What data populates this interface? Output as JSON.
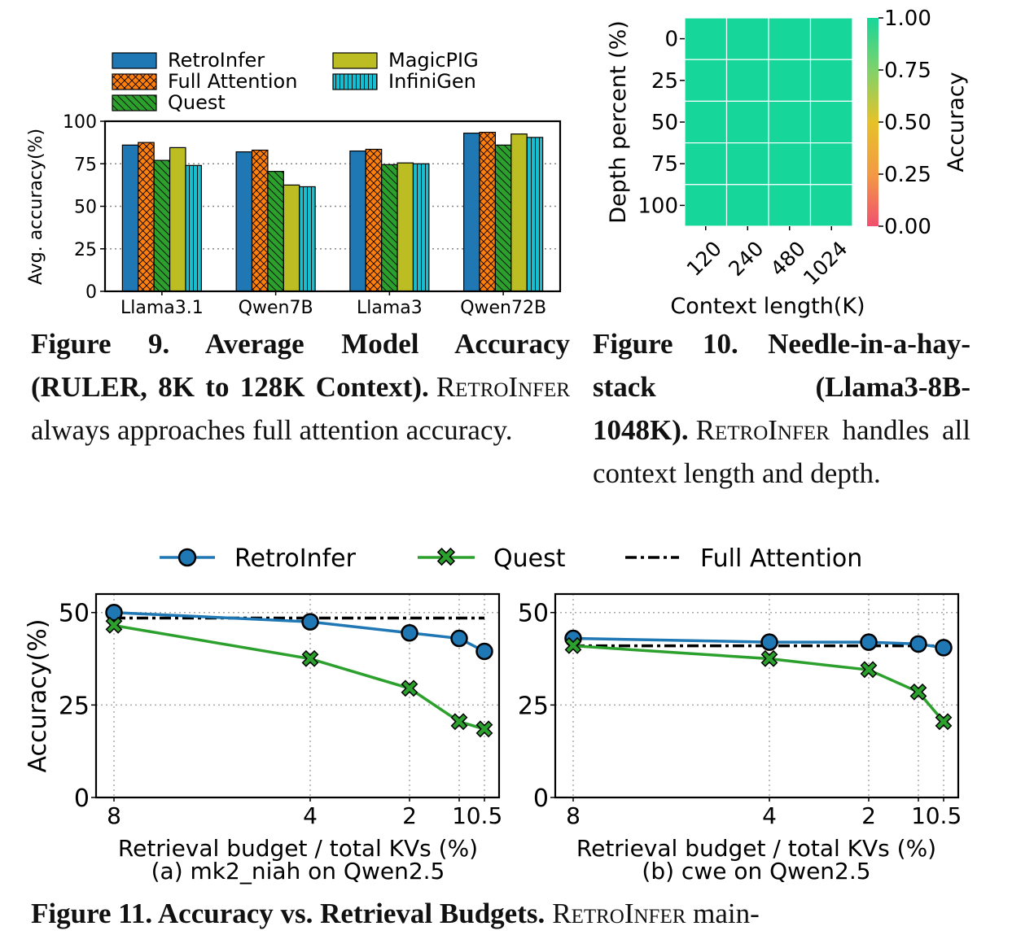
{
  "colors": {
    "retroinfer": "#1f77b4",
    "full_attention": "#ff7f0e",
    "quest": "#2ca02c",
    "magicpig": "#bcbd22",
    "infinigen": "#17becf",
    "heatmap": "#17d69a"
  },
  "captions": {
    "fig9": {
      "title": "Figure 9. Average Model Accuracy (RULER, 8K to 128K Context).",
      "sys": "RetroInfer",
      "body": " always approaches full attention accuracy."
    },
    "fig10": {
      "title": "Figure 10. Needle-in-a-hay-stack (Llama3-8B-1048K).",
      "sys": "RetroInfer",
      "body": " handles all context length and depth."
    },
    "fig11": {
      "title": "Figure 11. Accuracy vs. Retrieval Budgets.",
      "sys": "RetroInfer",
      "body": " main-"
    }
  },
  "chart_data": [
    {
      "id": "fig9",
      "type": "bar",
      "categories": [
        "Llama3.1",
        "Qwen7B",
        "Llama3",
        "Qwen72B"
      ],
      "series": [
        {
          "name": "RetroInfer",
          "values": [
            86,
            82,
            82.5,
            93
          ]
        },
        {
          "name": "Full Attention",
          "values": [
            87.5,
            83,
            83.5,
            93.5
          ]
        },
        {
          "name": "Quest",
          "values": [
            77,
            70.5,
            74.5,
            86
          ]
        },
        {
          "name": "MagicPIG",
          "values": [
            84.5,
            62.5,
            75.5,
            92.5
          ]
        },
        {
          "name": "InfiniGen",
          "values": [
            74,
            61.5,
            75,
            90.5
          ]
        }
      ],
      "ylabel": "Avg. accuracy(%)",
      "ylim": [
        0,
        100
      ],
      "yticks": [
        0,
        25,
        50,
        75,
        100
      ],
      "grid": "horizontal dotted",
      "legend": "top, two columns"
    },
    {
      "id": "fig10",
      "type": "heatmap",
      "x": [
        "120",
        "240",
        "480",
        "1024"
      ],
      "y": [
        "0",
        "25",
        "50",
        "75",
        "100"
      ],
      "values": [
        [
          1,
          1,
          1,
          1
        ],
        [
          1,
          1,
          1,
          1
        ],
        [
          1,
          1,
          1,
          1
        ],
        [
          1,
          1,
          1,
          1
        ],
        [
          1,
          1,
          1,
          1
        ]
      ],
      "xlabel": "Context length(K)",
      "ylabel": "Depth percent (%)",
      "colorbar": {
        "label": "Accuracy",
        "ticks": [
          "0.00",
          "0.25",
          "0.50",
          "0.75",
          "1.00"
        ],
        "range": [
          0,
          1
        ]
      }
    },
    {
      "id": "fig11a",
      "type": "line",
      "legend_labels": [
        "RetroInfer",
        "Quest",
        "Full Attention"
      ],
      "x_ticks": [
        "8",
        "4",
        "2",
        "1",
        "0.5"
      ],
      "x": [
        8,
        4,
        2,
        1,
        0.5
      ],
      "series": [
        {
          "name": "RetroInfer",
          "values": [
            50,
            47.5,
            44.5,
            43,
            39.5
          ]
        },
        {
          "name": "Quest",
          "values": [
            46.5,
            37.5,
            29.5,
            20.5,
            18.5
          ]
        },
        {
          "name": "Full Attention",
          "values": [
            48.5,
            48.5,
            48.5,
            48.5,
            48.5
          ]
        }
      ],
      "ylabel": "Accuracy(%)",
      "xlabel": "Retrieval budget / total KVs (%)",
      "subtitle": "(a) mk2_niah on Qwen2.5",
      "ylim": [
        0,
        55
      ],
      "yticks": [
        0,
        25,
        50
      ]
    },
    {
      "id": "fig11b",
      "type": "line",
      "x_ticks": [
        "8",
        "4",
        "2",
        "1",
        "0.5"
      ],
      "x": [
        8,
        4,
        2,
        1,
        0.5
      ],
      "series": [
        {
          "name": "RetroInfer",
          "values": [
            43,
            42,
            42,
            41.5,
            40.5
          ]
        },
        {
          "name": "Quest",
          "values": [
            41,
            37.5,
            34.5,
            28.5,
            20.5
          ]
        },
        {
          "name": "Full Attention",
          "values": [
            41,
            41,
            41,
            41,
            41
          ]
        }
      ],
      "xlabel": "Retrieval budget / total KVs (%)",
      "subtitle": "(b) cwe on Qwen2.5",
      "ylim": [
        0,
        55
      ],
      "yticks": [
        0,
        25,
        50
      ]
    }
  ]
}
